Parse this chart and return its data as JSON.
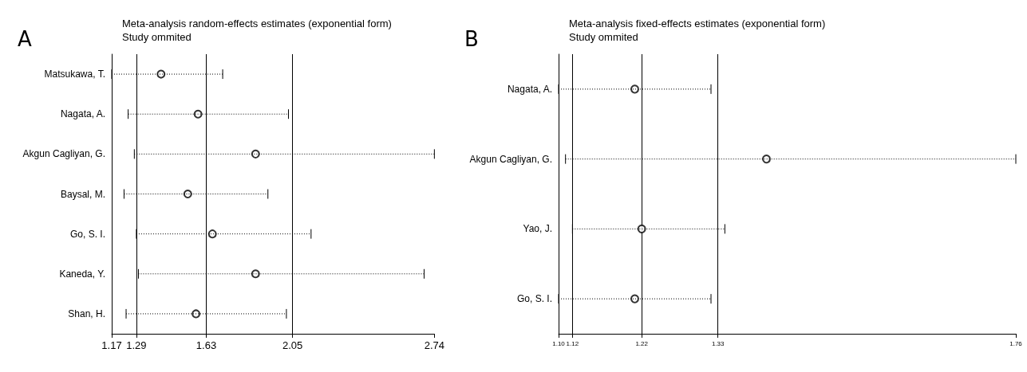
{
  "chart_data": [
    {
      "type": "scatter",
      "orientation": "horizontal",
      "title": "Meta-analysis random-effects estimates (exponential form)",
      "subtitle": "Study ommited",
      "annotations": [
        "A"
      ],
      "categories": [
        "Matsukawa, T.",
        "Nagata, A.",
        "Akgun Cagliyan, G.",
        "Baysal, M.",
        "Go, S. I.",
        "Kaneda, Y.",
        "Shan, H."
      ],
      "values": [
        1.41,
        1.59,
        1.87,
        1.54,
        1.66,
        1.87,
        1.58
      ],
      "errors": [
        [
          1.17,
          1.71
        ],
        [
          1.25,
          2.03
        ],
        [
          1.28,
          2.74
        ],
        [
          1.23,
          1.93
        ],
        [
          1.29,
          2.14
        ],
        [
          1.3,
          2.69
        ],
        [
          1.24,
          2.02
        ]
      ],
      "color": "#000000",
      "marker": "circle",
      "line_style": "dotted",
      "grid": false,
      "xlim": [
        1.17,
        2.74
      ],
      "xticks": [
        1.17,
        1.29,
        1.63,
        2.05,
        2.74
      ],
      "ref_lines": [
        {
          "axis": "x",
          "value": 1.29
        },
        {
          "axis": "x",
          "value": 1.63
        },
        {
          "axis": "x",
          "value": 2.05
        }
      ]
    },
    {
      "type": "scatter",
      "orientation": "horizontal",
      "title": "Meta-analysis fixed-effects estimates (exponential form)",
      "subtitle": "Study ommited",
      "annotations": [
        "B"
      ],
      "categories": [
        "Nagata, A.",
        "Akgun Cagliyan, G.",
        "Yao, J.",
        "Go, S. I."
      ],
      "values": [
        1.21,
        1.4,
        1.22,
        1.21
      ],
      "errors": [
        [
          1.1,
          1.32
        ],
        [
          1.11,
          1.76
        ],
        [
          1.12,
          1.34
        ],
        [
          1.1,
          1.32
        ]
      ],
      "color": "#000000",
      "marker": "circle",
      "line_style": "dotted",
      "grid": false,
      "xlim": [
        1.1,
        1.76
      ],
      "xticks": [
        {
          "value": 1.1,
          "label": "1.10"
        },
        1.12,
        1.22,
        1.33,
        1.76
      ],
      "ref_lines": [
        {
          "axis": "x",
          "value": 1.12
        },
        {
          "axis": "x",
          "value": 1.22
        },
        {
          "axis": "x",
          "value": 1.33
        }
      ]
    }
  ]
}
